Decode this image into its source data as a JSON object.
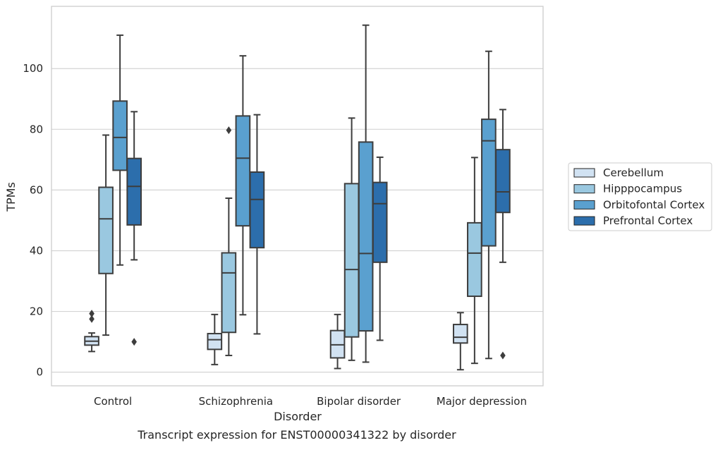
{
  "chart_data": {
    "type": "box",
    "title": "",
    "caption": "Transcript expression for ENST00000341322 by disorder",
    "xlabel": "Disorder",
    "ylabel": "TPMs",
    "ylim": [
      -4.5,
      120.5
    ],
    "yticks": [
      0,
      20,
      40,
      60,
      80,
      100
    ],
    "grid": "horizontal",
    "legend_position": "right",
    "categories": [
      "Control",
      "Schizophrenia",
      "Bipolar disorder",
      "Major depression"
    ],
    "series": [
      {
        "name": "Cerebellum",
        "color": "#d1e2f2",
        "boxes": [
          {
            "whislo": 6.8,
            "q1": 8.9,
            "med": 10.2,
            "q3": 11.7,
            "whishi": 12.9,
            "fliers": [
              17.5,
              19.3
            ]
          },
          {
            "whislo": 2.5,
            "q1": 7.5,
            "med": 10.7,
            "q3": 12.7,
            "whishi": 19.0,
            "fliers": []
          },
          {
            "whislo": 1.2,
            "q1": 4.7,
            "med": 9.0,
            "q3": 13.7,
            "whishi": 19.0,
            "fliers": []
          },
          {
            "whislo": 0.8,
            "q1": 9.6,
            "med": 11.5,
            "q3": 15.7,
            "whishi": 19.6,
            "fliers": []
          }
        ]
      },
      {
        "name": "Hipppocampus",
        "color": "#9ac8e0",
        "boxes": [
          {
            "whislo": 12.2,
            "q1": 32.5,
            "med": 50.5,
            "q3": 60.9,
            "whishi": 78.1,
            "fliers": []
          },
          {
            "whislo": 5.5,
            "q1": 13.1,
            "med": 32.7,
            "q3": 39.3,
            "whishi": 57.3,
            "fliers": [
              79.7
            ]
          },
          {
            "whislo": 3.9,
            "q1": 11.6,
            "med": 33.8,
            "q3": 62.1,
            "whishi": 83.7,
            "fliers": []
          },
          {
            "whislo": 2.9,
            "q1": 25.0,
            "med": 39.2,
            "q3": 49.2,
            "whishi": 70.7,
            "fliers": []
          }
        ]
      },
      {
        "name": "Orbitofontal Cortex",
        "color": "#5aa0cf",
        "boxes": [
          {
            "whislo": 35.3,
            "q1": 66.5,
            "med": 77.3,
            "q3": 89.3,
            "whishi": 111.0,
            "fliers": []
          },
          {
            "whislo": 18.9,
            "q1": 48.2,
            "med": 70.5,
            "q3": 84.4,
            "whishi": 104.2,
            "fliers": []
          },
          {
            "whislo": 3.3,
            "q1": 13.6,
            "med": 39.1,
            "q3": 75.8,
            "whishi": 114.3,
            "fliers": []
          },
          {
            "whislo": 4.5,
            "q1": 41.6,
            "med": 76.2,
            "q3": 83.3,
            "whishi": 105.7,
            "fliers": []
          }
        ]
      },
      {
        "name": "Prefrontal Cortex",
        "color": "#2c6eac",
        "boxes": [
          {
            "whislo": 37.0,
            "q1": 48.5,
            "med": 61.2,
            "q3": 70.4,
            "whishi": 85.8,
            "fliers": [
              10.0
            ]
          },
          {
            "whislo": 12.6,
            "q1": 41.0,
            "med": 56.9,
            "q3": 65.9,
            "whishi": 84.8,
            "fliers": []
          },
          {
            "whislo": 10.5,
            "q1": 36.2,
            "med": 55.5,
            "q3": 62.5,
            "whishi": 70.8,
            "fliers": []
          },
          {
            "whislo": 36.2,
            "q1": 52.6,
            "med": 59.4,
            "q3": 73.3,
            "whishi": 86.5,
            "fliers": [
              5.5
            ]
          }
        ]
      }
    ]
  }
}
